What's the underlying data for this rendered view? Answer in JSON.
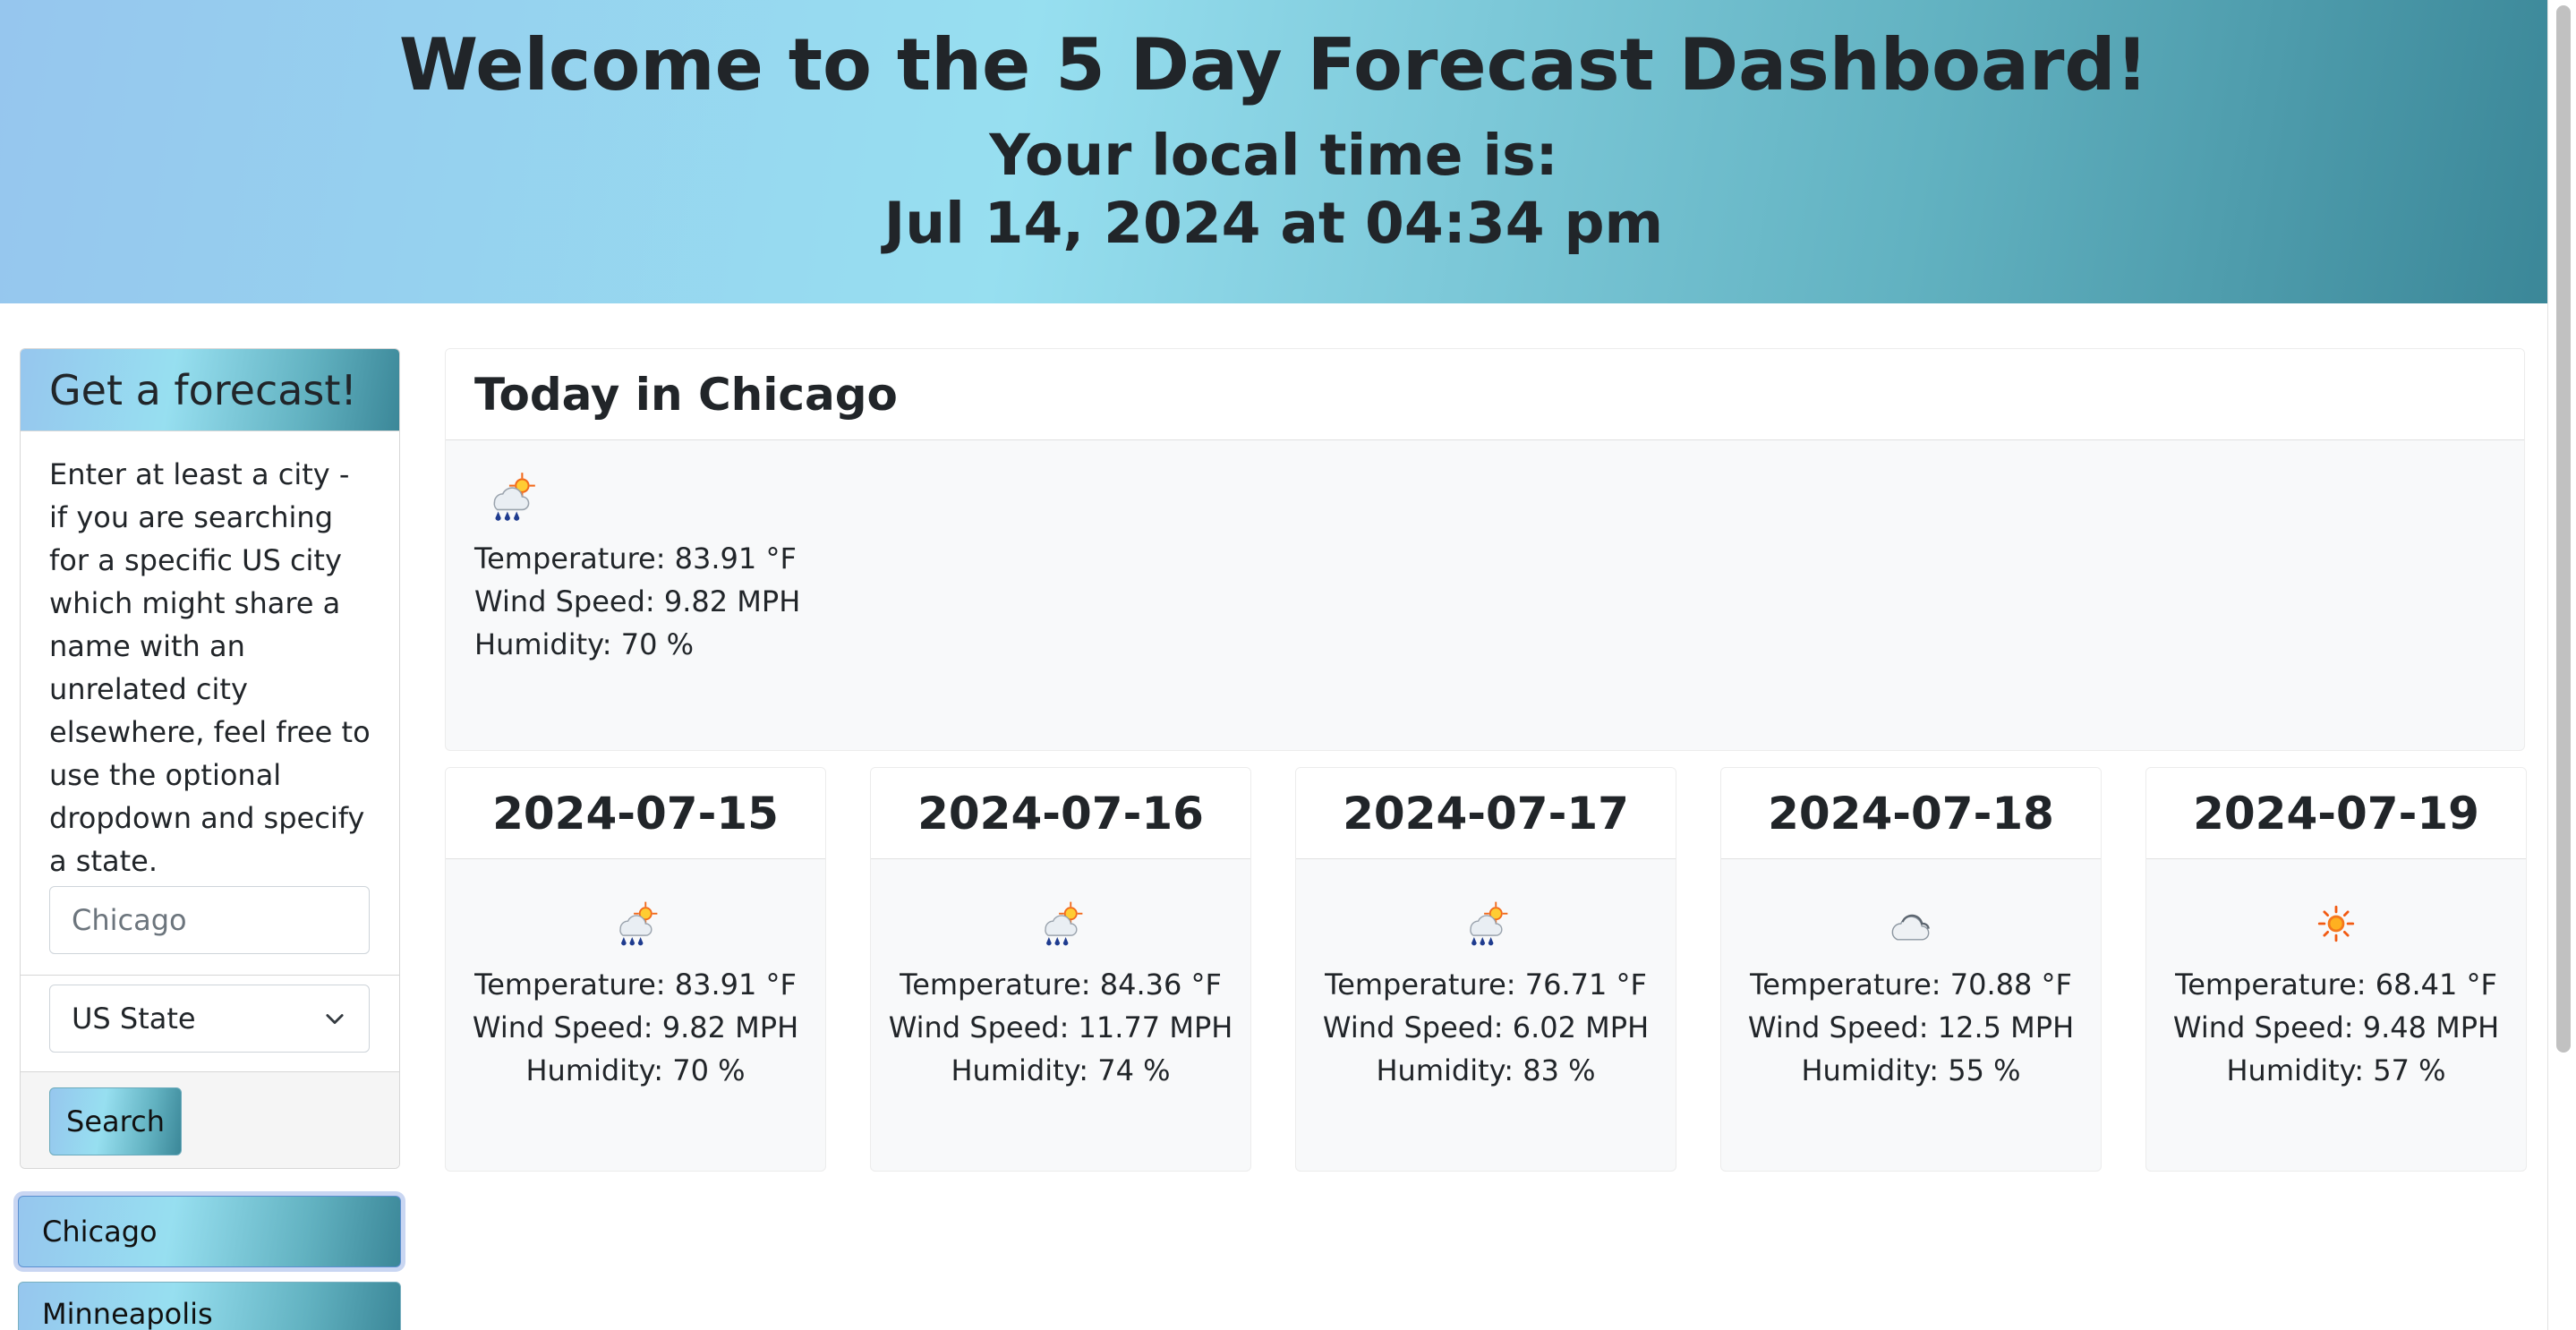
{
  "header": {
    "title": "Welcome to the 5 Day Forecast Dashboard!",
    "subtitle": "Your local time is:",
    "datetime": "Jul 14, 2024 at 04:34 pm"
  },
  "sidebar": {
    "card_title": "Get a forecast!",
    "description": "Enter at least a city - if you are searching for a specific US city which might share a name with an unrelated city elsewhere, feel free to use the optional dropdown and specify a state.",
    "city_placeholder": "Chicago",
    "state_select": "US State",
    "search_label": "Search",
    "history": [
      "Chicago",
      "Minneapolis"
    ]
  },
  "today": {
    "title": "Today in Chicago",
    "icon": "rain-sun-icon",
    "temperature": "Temperature: 83.91 °F",
    "wind": "Wind Speed: 9.82 MPH",
    "humidity": "Humidity: 70 %"
  },
  "forecast": [
    {
      "date": "2024-07-15",
      "icon": "rain-sun-icon",
      "temperature": "Temperature: 83.91 °F",
      "wind": "Wind Speed: 9.82 MPH",
      "humidity": "Humidity: 70 %"
    },
    {
      "date": "2024-07-16",
      "icon": "rain-sun-icon",
      "temperature": "Temperature: 84.36 °F",
      "wind": "Wind Speed: 11.77 MPH",
      "humidity": "Humidity: 74 %"
    },
    {
      "date": "2024-07-17",
      "icon": "rain-sun-icon",
      "temperature": "Temperature: 76.71 °F",
      "wind": "Wind Speed: 6.02 MPH",
      "humidity": "Humidity: 83 %"
    },
    {
      "date": "2024-07-18",
      "icon": "cloud-icon",
      "temperature": "Temperature: 70.88 °F",
      "wind": "Wind Speed: 12.5 MPH",
      "humidity": "Humidity: 55 %"
    },
    {
      "date": "2024-07-19",
      "icon": "sun-icon",
      "temperature": "Temperature: 68.41 °F",
      "wind": "Wind Speed: 9.48 MPH",
      "humidity": "Humidity: 57 %"
    }
  ],
  "colors": {
    "gradient_start": "#96c6ee",
    "gradient_mid": "#97dff0",
    "gradient_end": "#3b8798",
    "card_body_bg": "#f8f9fa"
  }
}
